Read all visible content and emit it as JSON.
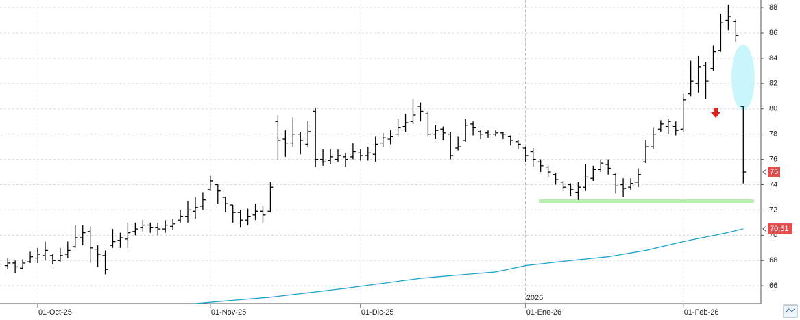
{
  "chart_data": {
    "type": "ohlc",
    "categories": [
      null,
      null,
      null,
      null,
      "01-Oct-25",
      null,
      null,
      null,
      null,
      null,
      null,
      null,
      null,
      null,
      null,
      null,
      null,
      null,
      null,
      null,
      null,
      null,
      null,
      null,
      null,
      null,
      null,
      "01-Nov-25",
      null,
      null,
      null,
      null,
      null,
      null,
      null,
      null,
      null,
      null,
      null,
      null,
      null,
      null,
      null,
      null,
      null,
      null,
      null,
      "01-Dic-25",
      null,
      null,
      null,
      null,
      null,
      null,
      null,
      null,
      null,
      null,
      null,
      null,
      null,
      null,
      null,
      null,
      null,
      null,
      null,
      null,
      null,
      "01-Ene-26",
      null,
      null,
      null,
      null,
      null,
      null,
      null,
      null,
      null,
      null,
      null,
      null,
      null,
      null,
      null,
      null,
      null,
      null,
      null,
      null,
      "01-Feb-26",
      null,
      null,
      null,
      null,
      null,
      null,
      null,
      null
    ],
    "series": [
      {
        "color": "#000000",
        "open": [
          67.6,
          67.8,
          67.4,
          67.9,
          68.2,
          68.4,
          68.4,
          68.0,
          68.5,
          69.1,
          69.8,
          70.3,
          68.9,
          68.4,
          69.2,
          69.6,
          69.7,
          70.3,
          70.6,
          70.8,
          70.6,
          70.5,
          70.7,
          71.2,
          71.5,
          71.9,
          72.3,
          73.6,
          74.0,
          73.0,
          72.4,
          71.8,
          71.2,
          71.6,
          71.9,
          71.9,
          79.0,
          77.6,
          77.3,
          78.0,
          77.2,
          79.8,
          76.0,
          75.9,
          76.0,
          76.2,
          76.2,
          76.5,
          76.3,
          76.4,
          77.3,
          77.6,
          78.0,
          78.6,
          79.0,
          80.2,
          79.6,
          78.0,
          78.4,
          78.0,
          76.9,
          77.5,
          78.8,
          78.2,
          78.1,
          78.0,
          78.1,
          77.8,
          77.4,
          76.9,
          76.6,
          75.8,
          75.4,
          74.8,
          74.2,
          74.0,
          73.4,
          73.8,
          74.5,
          75.2,
          75.6,
          74.8,
          74.0,
          73.8,
          74.2,
          75.8,
          77.0,
          78.4,
          78.6,
          78.6,
          78.4,
          81.2,
          82.0,
          83.4,
          83.2,
          84.6,
          87.0,
          86.9,
          80.2
        ],
        "high": [
          68.2,
          68.0,
          68.1,
          68.7,
          69.0,
          69.5,
          68.5,
          69.0,
          69.5,
          70.8,
          70.8,
          70.7,
          69.2,
          68.8,
          70.5,
          70.2,
          71.0,
          71.0,
          71.2,
          71.0,
          71.0,
          71.2,
          71.3,
          72.0,
          72.7,
          73.0,
          73.4,
          74.7,
          74.0,
          73.0,
          72.4,
          72.0,
          72.1,
          72.5,
          72.3,
          74.2,
          79.5,
          78.3,
          79.3,
          78.2,
          79.0,
          80.1,
          76.8,
          76.8,
          76.8,
          76.5,
          77.3,
          76.8,
          77.0,
          77.8,
          78.1,
          78.3,
          79.2,
          79.6,
          80.8,
          80.5,
          79.8,
          78.7,
          78.6,
          78.2,
          77.8,
          79.2,
          79.0,
          78.3,
          78.3,
          78.3,
          78.2,
          77.9,
          77.5,
          77.0,
          76.9,
          76.0,
          75.5,
          74.9,
          74.3,
          74.1,
          74.2,
          75.6,
          75.5,
          76.0,
          76.0,
          74.9,
          74.5,
          74.5,
          75.3,
          77.5,
          78.5,
          79.1,
          79.2,
          79.0,
          81.2,
          83.8,
          84.2,
          83.7,
          85.0,
          87.5,
          88.2,
          87.1,
          80.2
        ],
        "low": [
          67.3,
          67.0,
          67.3,
          67.8,
          67.8,
          68.0,
          67.7,
          67.9,
          68.2,
          69.0,
          69.2,
          67.8,
          67.5,
          66.9,
          69.0,
          69.0,
          69.0,
          70.0,
          70.3,
          70.2,
          70.0,
          70.2,
          70.4,
          71.0,
          71.0,
          71.3,
          72.0,
          73.5,
          72.5,
          71.8,
          71.0,
          70.6,
          70.8,
          71.2,
          71.0,
          71.8,
          76.0,
          76.2,
          77.0,
          76.4,
          77.0,
          75.4,
          75.5,
          75.6,
          75.8,
          75.4,
          76.0,
          75.9,
          75.9,
          75.8,
          77.0,
          77.2,
          77.8,
          78.2,
          78.8,
          79.0,
          77.8,
          77.6,
          77.5,
          76.0,
          76.7,
          77.4,
          77.9,
          77.6,
          77.7,
          77.8,
          77.6,
          77.1,
          76.8,
          75.8,
          75.4,
          75.0,
          74.6,
          74.0,
          73.5,
          73.1,
          72.8,
          73.5,
          74.3,
          75.0,
          74.8,
          73.3,
          73.0,
          73.6,
          73.8,
          75.7,
          76.8,
          78.2,
          78.0,
          77.9,
          78.2,
          81.0,
          81.3,
          80.8,
          83.0,
          84.5,
          86.2,
          85.3,
          74.1
        ],
        "close": [
          67.8,
          67.5,
          67.8,
          68.3,
          68.5,
          68.8,
          68.0,
          68.4,
          68.8,
          69.8,
          70.2,
          69.0,
          68.5,
          67.3,
          69.5,
          69.8,
          70.2,
          70.5,
          70.8,
          70.6,
          70.5,
          70.8,
          70.9,
          71.5,
          72.0,
          72.2,
          72.8,
          74.3,
          73.5,
          72.5,
          71.8,
          71.2,
          71.5,
          71.9,
          71.6,
          73.8,
          77.5,
          77.3,
          78.0,
          77.5,
          78.2,
          76.0,
          75.8,
          76.2,
          76.3,
          76.0,
          76.6,
          76.3,
          76.5,
          77.2,
          77.7,
          77.8,
          78.5,
          78.9,
          79.5,
          79.8,
          78.0,
          78.3,
          78.1,
          76.3,
          77.0,
          78.7,
          78.5,
          78.0,
          78.0,
          78.1,
          78.0,
          77.5,
          77.2,
          76.3,
          76.0,
          75.5,
          75.0,
          74.4,
          73.8,
          73.6,
          73.8,
          74.6,
          75.2,
          75.7,
          75.3,
          73.9,
          73.7,
          74.1,
          74.8,
          77.0,
          78.0,
          78.8,
          79.0,
          78.3,
          80.7,
          82.2,
          83.3,
          82.2,
          84.5,
          86.8,
          87.3,
          85.8,
          75
        ]
      },
      {
        "type": "line",
        "color": "#1aa3cc",
        "values": [
          null,
          null,
          null,
          null,
          null,
          null,
          null,
          null,
          null,
          null,
          null,
          null,
          null,
          null,
          null,
          null,
          null,
          null,
          null,
          null,
          null,
          null,
          null,
          null,
          null,
          64.6,
          64.65,
          64.7,
          64.75,
          64.8,
          64.85,
          64.9,
          64.95,
          65.0,
          65.05,
          65.1,
          65.17,
          65.24,
          65.31,
          65.38,
          65.45,
          65.52,
          65.59,
          65.66,
          65.73,
          65.8,
          65.88,
          65.96,
          66.04,
          66.12,
          66.2,
          66.28,
          66.36,
          66.44,
          66.52,
          66.6,
          66.65,
          66.7,
          66.75,
          66.8,
          66.85,
          66.9,
          66.95,
          67.0,
          67.05,
          67.1,
          67.22,
          67.35,
          67.47,
          67.6,
          67.67,
          67.73,
          67.8,
          67.87,
          67.93,
          68.0,
          68.06,
          68.12,
          68.18,
          68.24,
          68.3,
          68.4,
          68.5,
          68.6,
          68.7,
          68.8,
          68.94,
          69.08,
          69.22,
          69.36,
          69.5,
          69.62,
          69.74,
          69.86,
          69.98,
          70.1,
          70.23,
          70.37,
          70.51
        ],
        "last_label": "70,51"
      }
    ],
    "ylim": [
      64.6,
      88.6
    ],
    "yticks": [
      66,
      68,
      70,
      72,
      74,
      76,
      78,
      80,
      82,
      84,
      86,
      88
    ],
    "grid": true,
    "year_label": "2026",
    "support_level": 72.7
  }
}
